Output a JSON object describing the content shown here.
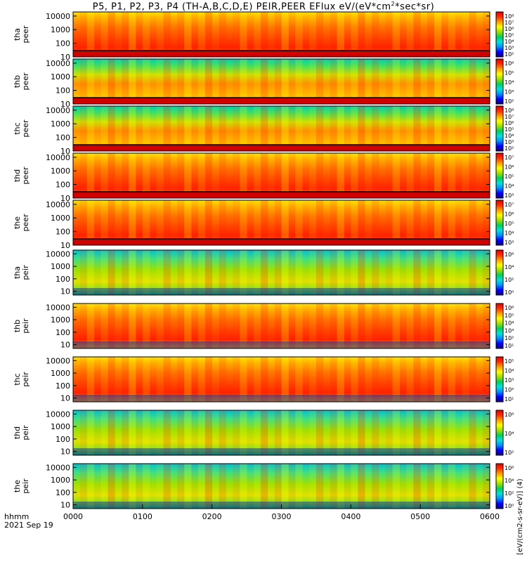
{
  "title": {
    "prefix": "P5, P1, P2, P3, P4 (TH-A,B,C,D,E) PEIR,PEER EFlux eV/(eV*cm",
    "sup": "2",
    "suffix": "*sec*sr)"
  },
  "time_axis": {
    "label_top": "hhmm",
    "label_bottom": "2021 Sep 19",
    "ticks": [
      "0000",
      "0100",
      "0200",
      "0300",
      "0400",
      "0500",
      "0600"
    ]
  },
  "colorbar_label": "[eV/(cm2-s-sr-eV)] (4)",
  "chart_data": [
    {
      "type": "heatmap",
      "probe": "tha",
      "species": "peer",
      "y_label": [
        "tha",
        "peer"
      ],
      "y_ticks": [
        "10000",
        "1000",
        "100",
        "10"
      ],
      "y_log_range": [
        10,
        20000
      ],
      "colorbar_ticks": [
        "10⁸",
        "10⁷",
        "10⁶",
        "10⁵",
        "10⁴",
        "10³",
        "10²"
      ],
      "dominant_level": "high",
      "low_energy_band": "red"
    },
    {
      "type": "heatmap",
      "probe": "thb",
      "species": "peer",
      "y_label": [
        "thb",
        "peer"
      ],
      "y_ticks": [
        "10000",
        "1000",
        "100",
        "10"
      ],
      "y_log_range": [
        10,
        20000
      ],
      "colorbar_ticks": [
        "10⁶",
        "10⁵",
        "10⁴",
        "10³",
        "10²"
      ],
      "dominant_level": "mid",
      "low_energy_band": "red"
    },
    {
      "type": "heatmap",
      "probe": "thc",
      "species": "peer",
      "y_label": [
        "thc",
        "peer"
      ],
      "y_ticks": [
        "10000",
        "1000",
        "100",
        "10"
      ],
      "y_log_range": [
        10,
        20000
      ],
      "colorbar_ticks": [
        "10⁸",
        "10⁷",
        "10⁶",
        "10⁵",
        "10⁴",
        "10³",
        "10²"
      ],
      "dominant_level": "mid",
      "low_energy_band": "red"
    },
    {
      "type": "heatmap",
      "probe": "thd",
      "species": "peer",
      "y_label": [
        "thd",
        "peer"
      ],
      "y_ticks": [
        "10000",
        "1000",
        "100",
        "10"
      ],
      "y_log_range": [
        10,
        20000
      ],
      "colorbar_ticks": [
        "10⁷",
        "10⁶",
        "10⁵",
        "10⁴",
        "10³"
      ],
      "dominant_level": "high",
      "low_energy_band": "red"
    },
    {
      "type": "heatmap",
      "probe": "the",
      "species": "peer",
      "y_label": [
        "the",
        "peer"
      ],
      "y_ticks": [
        "10000",
        "1000",
        "100",
        "10"
      ],
      "y_log_range": [
        10,
        20000
      ],
      "colorbar_ticks": [
        "10⁷",
        "10⁶",
        "10⁵",
        "10⁴",
        "10³"
      ],
      "dominant_level": "high",
      "low_energy_band": "red"
    },
    {
      "type": "heatmap",
      "probe": "tha",
      "species": "peir",
      "y_label": [
        "tha",
        "peir"
      ],
      "y_ticks": [
        "10000",
        "1000",
        "100",
        "10"
      ],
      "y_log_range": [
        5,
        20000
      ],
      "colorbar_ticks": [
        "10⁶",
        "10⁴",
        "10²",
        "10⁰"
      ],
      "dominant_level": "low",
      "low_energy_band": "none"
    },
    {
      "type": "heatmap",
      "probe": "thb",
      "species": "peir",
      "y_label": [
        "thb",
        "peir"
      ],
      "y_ticks": [
        "10000",
        "1000",
        "100",
        "10"
      ],
      "y_log_range": [
        5,
        20000
      ],
      "colorbar_ticks": [
        "10⁶",
        "10⁵",
        "10⁴",
        "10³",
        "10²",
        "10¹"
      ],
      "dominant_level": "high",
      "low_energy_band": "none"
    },
    {
      "type": "heatmap",
      "probe": "thc",
      "species": "peir",
      "y_label": [
        "thc",
        "peir"
      ],
      "y_ticks": [
        "10000",
        "1000",
        "100",
        "10"
      ],
      "y_log_range": [
        5,
        20000
      ],
      "colorbar_ticks": [
        "10⁵",
        "10⁴",
        "10³",
        "10²",
        "10¹"
      ],
      "dominant_level": "high",
      "low_energy_band": "none"
    },
    {
      "type": "heatmap",
      "probe": "thd",
      "species": "peir",
      "y_label": [
        "thd",
        "peir"
      ],
      "y_ticks": [
        "10000",
        "1000",
        "100",
        "10"
      ],
      "y_log_range": [
        5,
        20000
      ],
      "colorbar_ticks": [
        "10⁶",
        "10⁴",
        "10²"
      ],
      "dominant_level": "low",
      "low_energy_band": "none"
    },
    {
      "type": "heatmap",
      "probe": "the",
      "species": "peir",
      "y_label": [
        "the",
        "peir"
      ],
      "y_ticks": [
        "10000",
        "1000",
        "100",
        "10"
      ],
      "y_log_range": [
        5,
        20000
      ],
      "colorbar_ticks": [
        "10⁶",
        "10⁴",
        "10²",
        "10⁰"
      ],
      "dominant_level": "low",
      "low_energy_band": "none"
    }
  ],
  "colors": {
    "scale": [
      "#1a0070",
      "#0000ff",
      "#0090ff",
      "#00e0e0",
      "#00d060",
      "#a0e000",
      "#ffff00",
      "#ffa000",
      "#ff3000",
      "#e00000"
    ]
  }
}
